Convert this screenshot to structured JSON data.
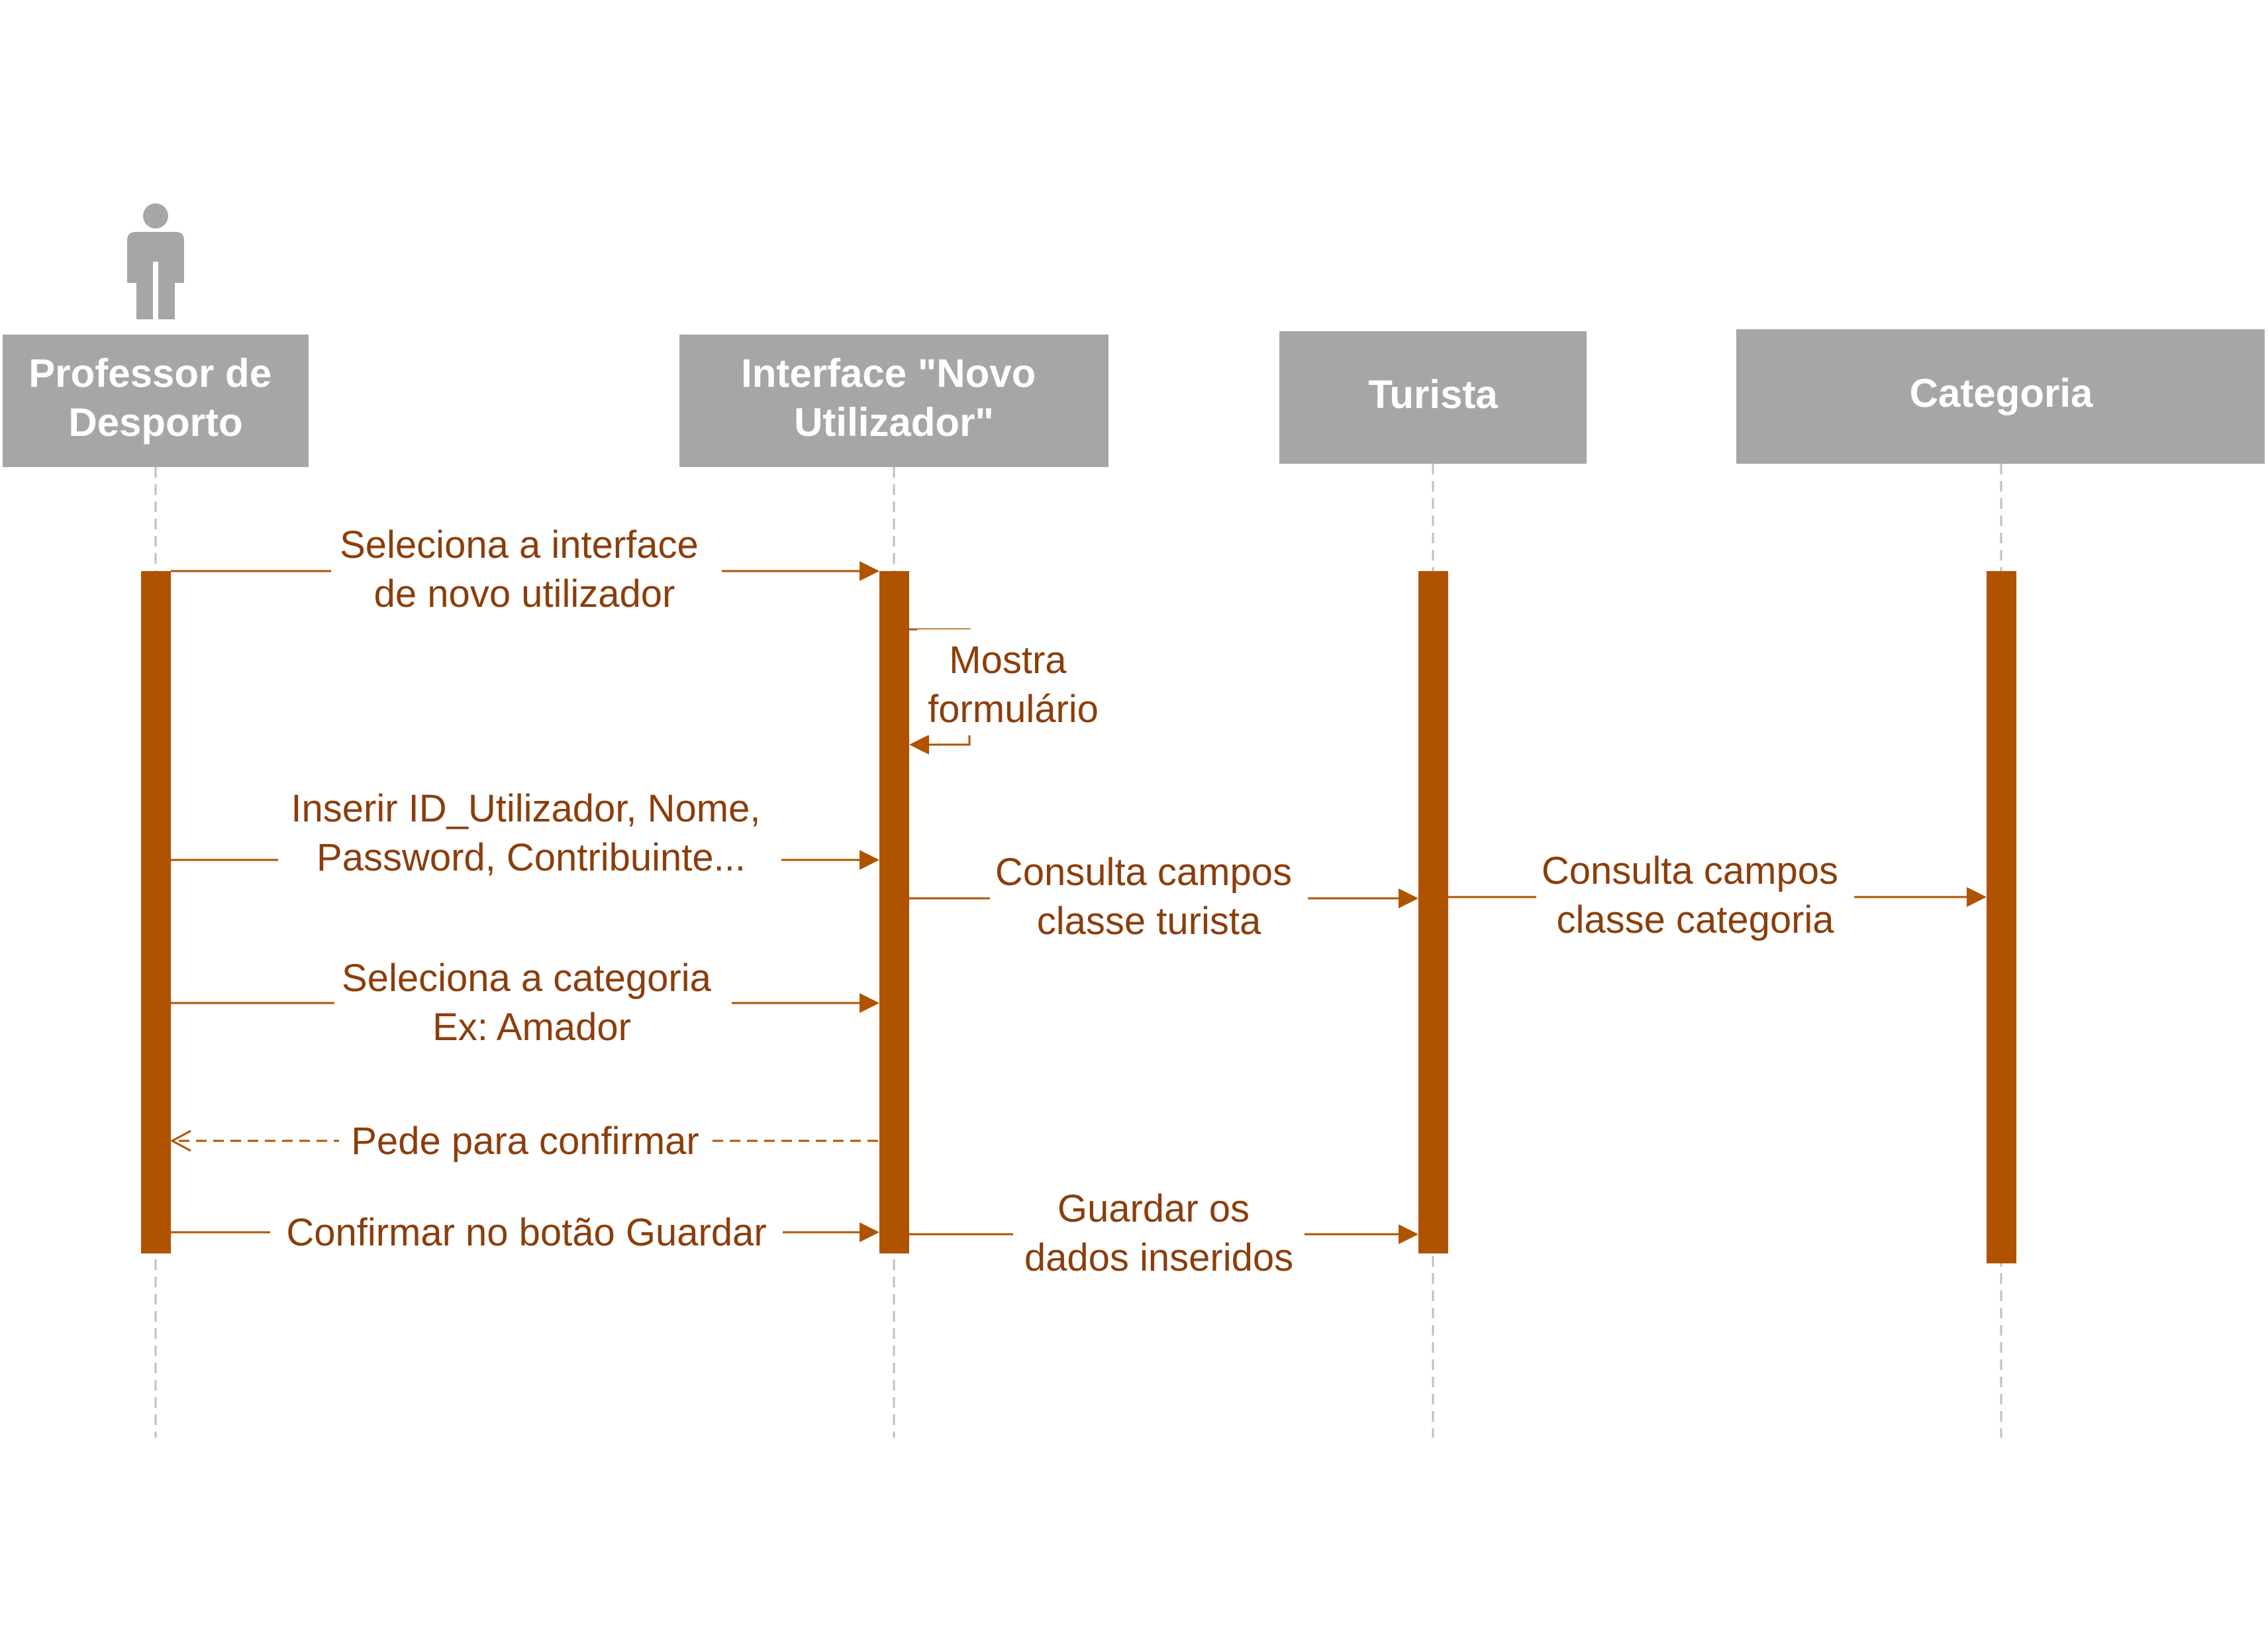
{
  "colors": {
    "lifeline_header": "#a6a6a6",
    "activation_bar": "#b05300",
    "message_line": "#b05300",
    "message_text": "#8b3e0b",
    "dashed_lifeline": "#bfbfbf"
  },
  "actor_icon": "person-icon",
  "lifelines": [
    {
      "id": "professor",
      "lines": [
        "Professor de",
        "Desporto"
      ]
    },
    {
      "id": "interface",
      "lines": [
        "Interface \"Novo",
        "Utilizador\""
      ]
    },
    {
      "id": "turista",
      "lines": [
        "Turista"
      ]
    },
    {
      "id": "categoria",
      "lines": [
        "Categoria"
      ]
    }
  ],
  "messages": [
    {
      "id": "m1",
      "from": "professor",
      "to": "interface",
      "style": "solid",
      "lines": [
        "Seleciona a interface",
        "de novo utilizador"
      ]
    },
    {
      "id": "m2",
      "from": "interface",
      "to": "interface",
      "style": "self",
      "lines": [
        "Mostra",
        "formulário"
      ]
    },
    {
      "id": "m3",
      "from": "professor",
      "to": "interface",
      "style": "solid",
      "lines": [
        "Inserir ID_Utilizador, Nome,",
        "Password, Contribuinte..."
      ]
    },
    {
      "id": "m4",
      "from": "interface",
      "to": "turista",
      "style": "solid",
      "lines": [
        "Consulta campos",
        "classe turista"
      ]
    },
    {
      "id": "m5",
      "from": "turista",
      "to": "categoria",
      "style": "solid",
      "lines": [
        "Consulta campos",
        "classe categoria"
      ]
    },
    {
      "id": "m6",
      "from": "professor",
      "to": "interface",
      "style": "solid",
      "lines": [
        "Seleciona a categoria",
        "Ex: Amador"
      ]
    },
    {
      "id": "m7",
      "from": "interface",
      "to": "professor",
      "style": "dashed",
      "lines": [
        "Pede para confirmar"
      ]
    },
    {
      "id": "m8",
      "from": "professor",
      "to": "interface",
      "style": "solid",
      "lines": [
        "Confirmar no botão Guardar"
      ]
    },
    {
      "id": "m9",
      "from": "interface",
      "to": "turista",
      "style": "solid",
      "lines": [
        "Guardar os",
        "dados inseridos"
      ]
    }
  ]
}
